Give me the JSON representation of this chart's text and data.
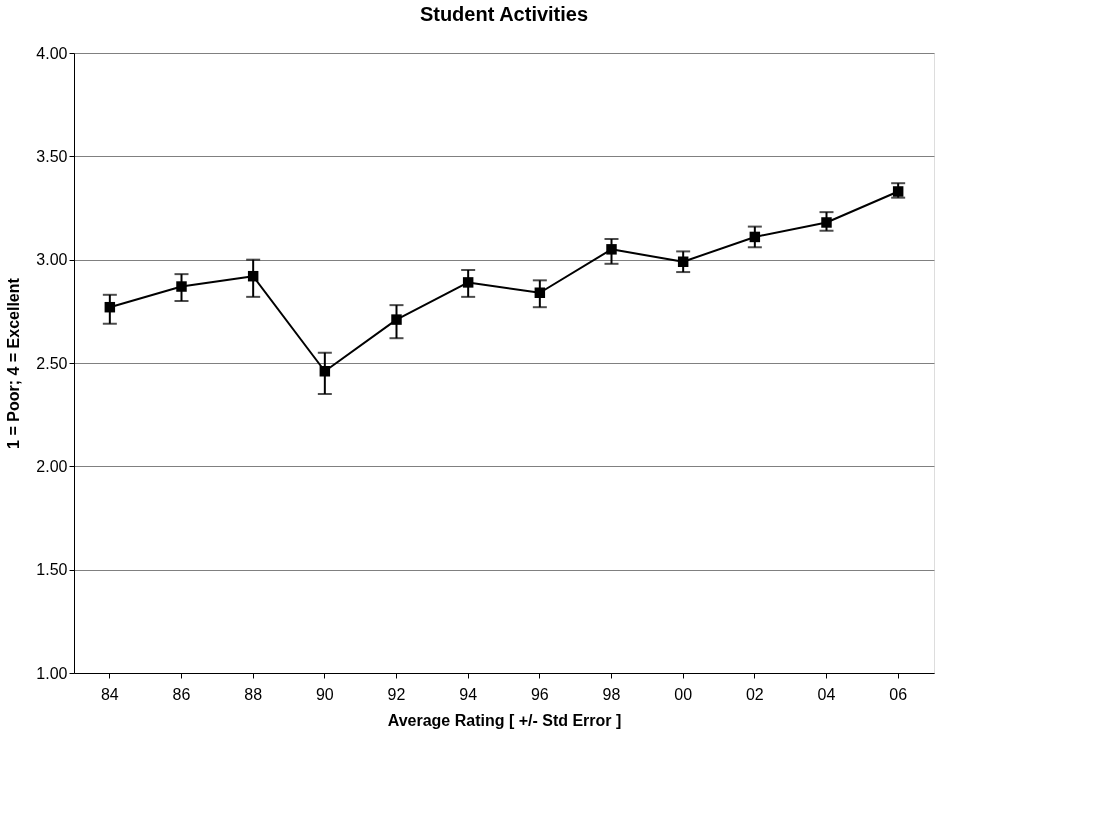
{
  "chart_data": {
    "type": "line",
    "title": "Student Activities",
    "xlabel": "Average Rating [ +/- Std Error ]",
    "ylabel": "1 = Poor;  4 = Excellent",
    "categories": [
      "84",
      "86",
      "88",
      "90",
      "92",
      "94",
      "96",
      "98",
      "00",
      "02",
      "04",
      "06"
    ],
    "series": [
      {
        "color": "#000000",
        "values": [
          2.77,
          2.87,
          2.92,
          2.46,
          2.71,
          2.89,
          2.84,
          3.05,
          2.99,
          3.11,
          3.18,
          3.33
        ],
        "errors": [
          [
            2.69,
            2.83
          ],
          [
            2.8,
            2.93
          ],
          [
            2.82,
            3.0
          ],
          [
            2.35,
            2.55
          ],
          [
            2.62,
            2.78
          ],
          [
            2.82,
            2.95
          ],
          [
            2.77,
            2.9
          ],
          [
            2.98,
            3.1
          ],
          [
            2.94,
            3.04
          ],
          [
            3.06,
            3.16
          ],
          [
            3.14,
            3.23
          ],
          [
            3.3,
            3.37
          ]
        ]
      }
    ],
    "ylim": [
      1,
      4
    ],
    "yticks": [
      {
        "value": 1,
        "label": "1.00"
      },
      {
        "value": 1.5,
        "label": "1.50"
      },
      {
        "value": 2,
        "label": "2.00"
      },
      {
        "value": 2.5,
        "label": "2.50"
      },
      {
        "value": 3,
        "label": "3.00"
      },
      {
        "value": 3.5,
        "label": "3.50"
      },
      {
        "value": 4,
        "label": "4.00"
      }
    ],
    "grid": "y",
    "marker": "square",
    "line_style": "solid"
  }
}
